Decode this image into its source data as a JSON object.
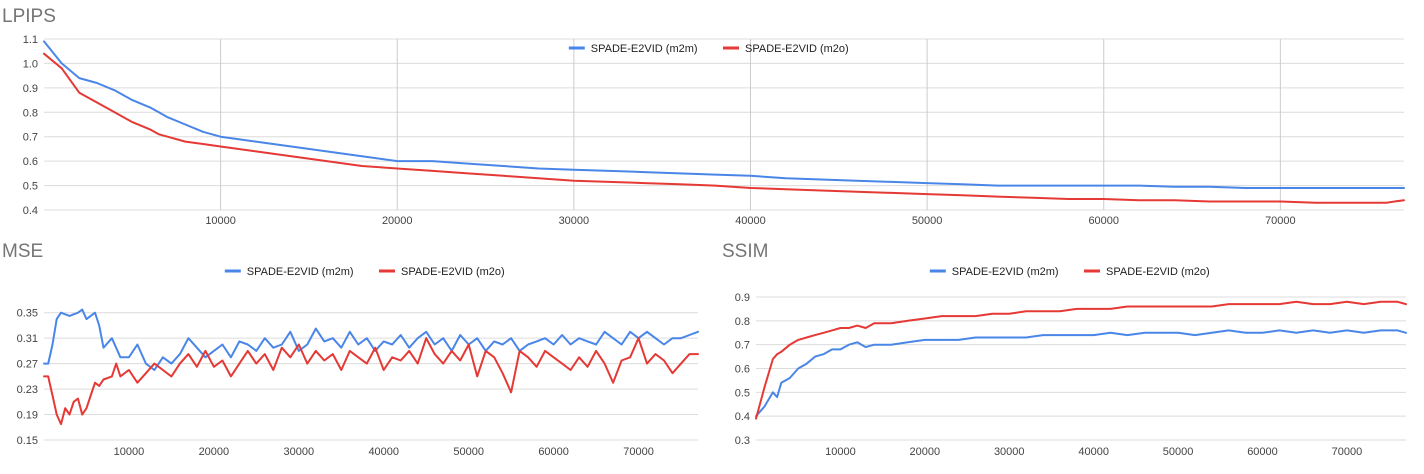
{
  "chart_data": [
    {
      "type": "line",
      "title": "LPIPS",
      "xlabel": "",
      "ylabel": "",
      "xlim": [
        0,
        77000
      ],
      "ylim": [
        0.4,
        1.1
      ],
      "y_ticks": [
        "0.4",
        "0.5",
        "0.6",
        "0.7",
        "0.8",
        "0.9",
        "1.0",
        "1.1"
      ],
      "x_ticks": [
        "10000",
        "20000",
        "30000",
        "40000",
        "50000",
        "60000",
        "70000"
      ],
      "grid": true,
      "legend_position": "top",
      "series": [
        {
          "name": "SPADE-E2VID (m2m)",
          "color": "#4a86e8",
          "x": [
            0,
            1000,
            2000,
            3000,
            4000,
            5000,
            6000,
            6500,
            7000,
            8000,
            9000,
            10000,
            12000,
            14000,
            16000,
            18000,
            20000,
            22000,
            24000,
            26000,
            28000,
            30000,
            32000,
            34000,
            36000,
            38000,
            40000,
            42000,
            44000,
            46000,
            48000,
            50000,
            52000,
            54000,
            56000,
            58000,
            60000,
            62000,
            64000,
            66000,
            68000,
            70000,
            72000,
            74000,
            76000,
            77000
          ],
          "values": [
            1.09,
            1.0,
            0.94,
            0.92,
            0.89,
            0.85,
            0.82,
            0.8,
            0.78,
            0.75,
            0.72,
            0.7,
            0.68,
            0.66,
            0.64,
            0.62,
            0.6,
            0.6,
            0.59,
            0.58,
            0.57,
            0.565,
            0.56,
            0.555,
            0.55,
            0.545,
            0.54,
            0.53,
            0.525,
            0.52,
            0.515,
            0.51,
            0.505,
            0.5,
            0.5,
            0.5,
            0.5,
            0.5,
            0.495,
            0.495,
            0.49,
            0.49,
            0.49,
            0.49,
            0.49,
            0.49
          ]
        },
        {
          "name": "SPADE-E2VID (m2o)",
          "color": "#e53935",
          "x": [
            0,
            1000,
            2000,
            3000,
            4000,
            5000,
            6000,
            6500,
            7000,
            8000,
            9000,
            10000,
            12000,
            14000,
            16000,
            18000,
            20000,
            22000,
            24000,
            26000,
            28000,
            30000,
            32000,
            34000,
            36000,
            38000,
            40000,
            42000,
            44000,
            46000,
            48000,
            50000,
            52000,
            54000,
            56000,
            58000,
            60000,
            62000,
            64000,
            66000,
            68000,
            70000,
            72000,
            74000,
            76000,
            77000
          ],
          "values": [
            1.04,
            0.98,
            0.88,
            0.84,
            0.8,
            0.76,
            0.73,
            0.71,
            0.7,
            0.68,
            0.67,
            0.66,
            0.64,
            0.62,
            0.6,
            0.58,
            0.57,
            0.56,
            0.55,
            0.54,
            0.53,
            0.52,
            0.515,
            0.51,
            0.505,
            0.5,
            0.49,
            0.485,
            0.48,
            0.475,
            0.47,
            0.465,
            0.46,
            0.455,
            0.45,
            0.445,
            0.445,
            0.44,
            0.44,
            0.435,
            0.435,
            0.435,
            0.43,
            0.43,
            0.43,
            0.44
          ]
        }
      ]
    },
    {
      "type": "line",
      "title": "MSE",
      "xlabel": "",
      "ylabel": "",
      "xlim": [
        0,
        77000
      ],
      "ylim": [
        0.15,
        0.37
      ],
      "y_ticks": [
        "0.15",
        "0.19",
        "0.23",
        "0.27",
        "0.31",
        "0.35"
      ],
      "x_ticks": [
        "10000",
        "20000",
        "30000",
        "40000",
        "50000",
        "60000",
        "70000"
      ],
      "grid": true,
      "legend_position": "top",
      "series": [
        {
          "name": "SPADE-E2VID (m2m)",
          "color": "#4a86e8",
          "x": [
            0,
            500,
            1000,
            1500,
            2000,
            3000,
            4000,
            4500,
            5000,
            5500,
            6000,
            6500,
            7000,
            8000,
            9000,
            10000,
            11000,
            12000,
            13000,
            14000,
            15000,
            16000,
            17000,
            18000,
            19000,
            20000,
            21000,
            22000,
            23000,
            24000,
            25000,
            26000,
            27000,
            28000,
            29000,
            30000,
            31000,
            32000,
            33000,
            34000,
            35000,
            36000,
            37000,
            38000,
            39000,
            40000,
            41000,
            42000,
            43000,
            44000,
            45000,
            46000,
            47000,
            48000,
            49000,
            50000,
            51000,
            52000,
            53000,
            54000,
            55000,
            56000,
            57000,
            58000,
            59000,
            60000,
            61000,
            62000,
            63000,
            64000,
            65000,
            66000,
            67000,
            68000,
            69000,
            70000,
            71000,
            72000,
            73000,
            74000,
            75000,
            76000,
            77000
          ],
          "values": [
            0.27,
            0.27,
            0.3,
            0.34,
            0.35,
            0.345,
            0.35,
            0.355,
            0.34,
            0.345,
            0.35,
            0.33,
            0.295,
            0.31,
            0.28,
            0.28,
            0.3,
            0.27,
            0.26,
            0.28,
            0.27,
            0.285,
            0.31,
            0.295,
            0.28,
            0.29,
            0.3,
            0.28,
            0.305,
            0.3,
            0.29,
            0.31,
            0.295,
            0.3,
            0.32,
            0.29,
            0.3,
            0.325,
            0.305,
            0.31,
            0.295,
            0.32,
            0.3,
            0.31,
            0.29,
            0.305,
            0.3,
            0.315,
            0.295,
            0.31,
            0.32,
            0.3,
            0.31,
            0.29,
            0.315,
            0.3,
            0.31,
            0.29,
            0.305,
            0.3,
            0.31,
            0.29,
            0.3,
            0.305,
            0.31,
            0.3,
            0.315,
            0.3,
            0.31,
            0.305,
            0.3,
            0.32,
            0.31,
            0.3,
            0.32,
            0.31,
            0.32,
            0.31,
            0.3,
            0.31,
            0.31,
            0.315,
            0.32
          ]
        },
        {
          "name": "SPADE-E2VID (m2o)",
          "color": "#e53935",
          "x": [
            0,
            500,
            1000,
            1500,
            2000,
            2500,
            3000,
            3500,
            4000,
            4500,
            5000,
            5500,
            6000,
            6500,
            7000,
            8000,
            8500,
            9000,
            10000,
            11000,
            12000,
            13000,
            14000,
            15000,
            16000,
            17000,
            18000,
            19000,
            20000,
            21000,
            22000,
            23000,
            24000,
            25000,
            26000,
            27000,
            28000,
            29000,
            30000,
            31000,
            32000,
            33000,
            34000,
            35000,
            36000,
            37000,
            38000,
            39000,
            40000,
            41000,
            42000,
            43000,
            44000,
            45000,
            46000,
            47000,
            48000,
            49000,
            50000,
            51000,
            52000,
            53000,
            54000,
            55000,
            56000,
            57000,
            58000,
            59000,
            60000,
            61000,
            62000,
            63000,
            64000,
            65000,
            66000,
            67000,
            68000,
            69000,
            70000,
            71000,
            72000,
            73000,
            74000,
            75000,
            76000,
            77000
          ],
          "values": [
            0.25,
            0.25,
            0.22,
            0.19,
            0.175,
            0.2,
            0.19,
            0.21,
            0.215,
            0.19,
            0.2,
            0.22,
            0.24,
            0.235,
            0.245,
            0.25,
            0.27,
            0.25,
            0.26,
            0.24,
            0.255,
            0.27,
            0.26,
            0.25,
            0.27,
            0.285,
            0.265,
            0.29,
            0.265,
            0.275,
            0.25,
            0.27,
            0.29,
            0.27,
            0.285,
            0.26,
            0.295,
            0.28,
            0.3,
            0.27,
            0.29,
            0.275,
            0.285,
            0.26,
            0.29,
            0.28,
            0.27,
            0.295,
            0.26,
            0.28,
            0.275,
            0.29,
            0.27,
            0.31,
            0.285,
            0.27,
            0.29,
            0.275,
            0.3,
            0.25,
            0.29,
            0.28,
            0.255,
            0.225,
            0.29,
            0.28,
            0.265,
            0.29,
            0.28,
            0.27,
            0.26,
            0.28,
            0.265,
            0.29,
            0.27,
            0.24,
            0.275,
            0.28,
            0.31,
            0.27,
            0.285,
            0.275,
            0.255,
            0.27,
            0.285,
            0.285
          ]
        }
      ]
    },
    {
      "type": "line",
      "title": "SSIM",
      "xlabel": "",
      "ylabel": "",
      "xlim": [
        0,
        77000
      ],
      "ylim": [
        0.3,
        0.9
      ],
      "y_ticks": [
        "0.3",
        "0.4",
        "0.5",
        "0.6",
        "0.7",
        "0.8",
        "0.9"
      ],
      "x_ticks": [
        "10000",
        "20000",
        "30000",
        "40000",
        "50000",
        "60000",
        "70000"
      ],
      "grid": true,
      "legend_position": "top",
      "series": [
        {
          "name": "SPADE-E2VID (m2m)",
          "color": "#4a86e8",
          "x": [
            0,
            1000,
            2000,
            2500,
            3000,
            4000,
            5000,
            6000,
            7000,
            8000,
            9000,
            10000,
            11000,
            12000,
            13000,
            14000,
            16000,
            18000,
            20000,
            22000,
            24000,
            26000,
            28000,
            30000,
            32000,
            34000,
            36000,
            38000,
            40000,
            42000,
            44000,
            46000,
            48000,
            50000,
            52000,
            54000,
            56000,
            58000,
            60000,
            62000,
            64000,
            66000,
            68000,
            70000,
            72000,
            74000,
            76000,
            77000
          ],
          "values": [
            0.4,
            0.44,
            0.5,
            0.48,
            0.54,
            0.56,
            0.6,
            0.62,
            0.65,
            0.66,
            0.68,
            0.68,
            0.7,
            0.71,
            0.69,
            0.7,
            0.7,
            0.71,
            0.72,
            0.72,
            0.72,
            0.73,
            0.73,
            0.73,
            0.73,
            0.74,
            0.74,
            0.74,
            0.74,
            0.75,
            0.74,
            0.75,
            0.75,
            0.75,
            0.74,
            0.75,
            0.76,
            0.75,
            0.75,
            0.76,
            0.75,
            0.76,
            0.75,
            0.76,
            0.75,
            0.76,
            0.76,
            0.75
          ]
        },
        {
          "name": "SPADE-E2VID (m2o)",
          "color": "#e53935",
          "x": [
            0,
            1000,
            2000,
            2500,
            3000,
            4000,
            5000,
            6000,
            7000,
            8000,
            9000,
            10000,
            11000,
            12000,
            13000,
            14000,
            16000,
            18000,
            20000,
            22000,
            24000,
            26000,
            28000,
            30000,
            32000,
            34000,
            36000,
            38000,
            40000,
            42000,
            44000,
            46000,
            48000,
            50000,
            52000,
            54000,
            56000,
            58000,
            60000,
            62000,
            64000,
            66000,
            68000,
            70000,
            72000,
            74000,
            76000,
            77000
          ],
          "values": [
            0.39,
            0.52,
            0.64,
            0.66,
            0.67,
            0.7,
            0.72,
            0.73,
            0.74,
            0.75,
            0.76,
            0.77,
            0.77,
            0.78,
            0.77,
            0.79,
            0.79,
            0.8,
            0.81,
            0.82,
            0.82,
            0.82,
            0.83,
            0.83,
            0.84,
            0.84,
            0.84,
            0.85,
            0.85,
            0.85,
            0.86,
            0.86,
            0.86,
            0.86,
            0.86,
            0.86,
            0.87,
            0.87,
            0.87,
            0.87,
            0.88,
            0.87,
            0.87,
            0.88,
            0.87,
            0.88,
            0.88,
            0.87
          ]
        }
      ]
    }
  ]
}
